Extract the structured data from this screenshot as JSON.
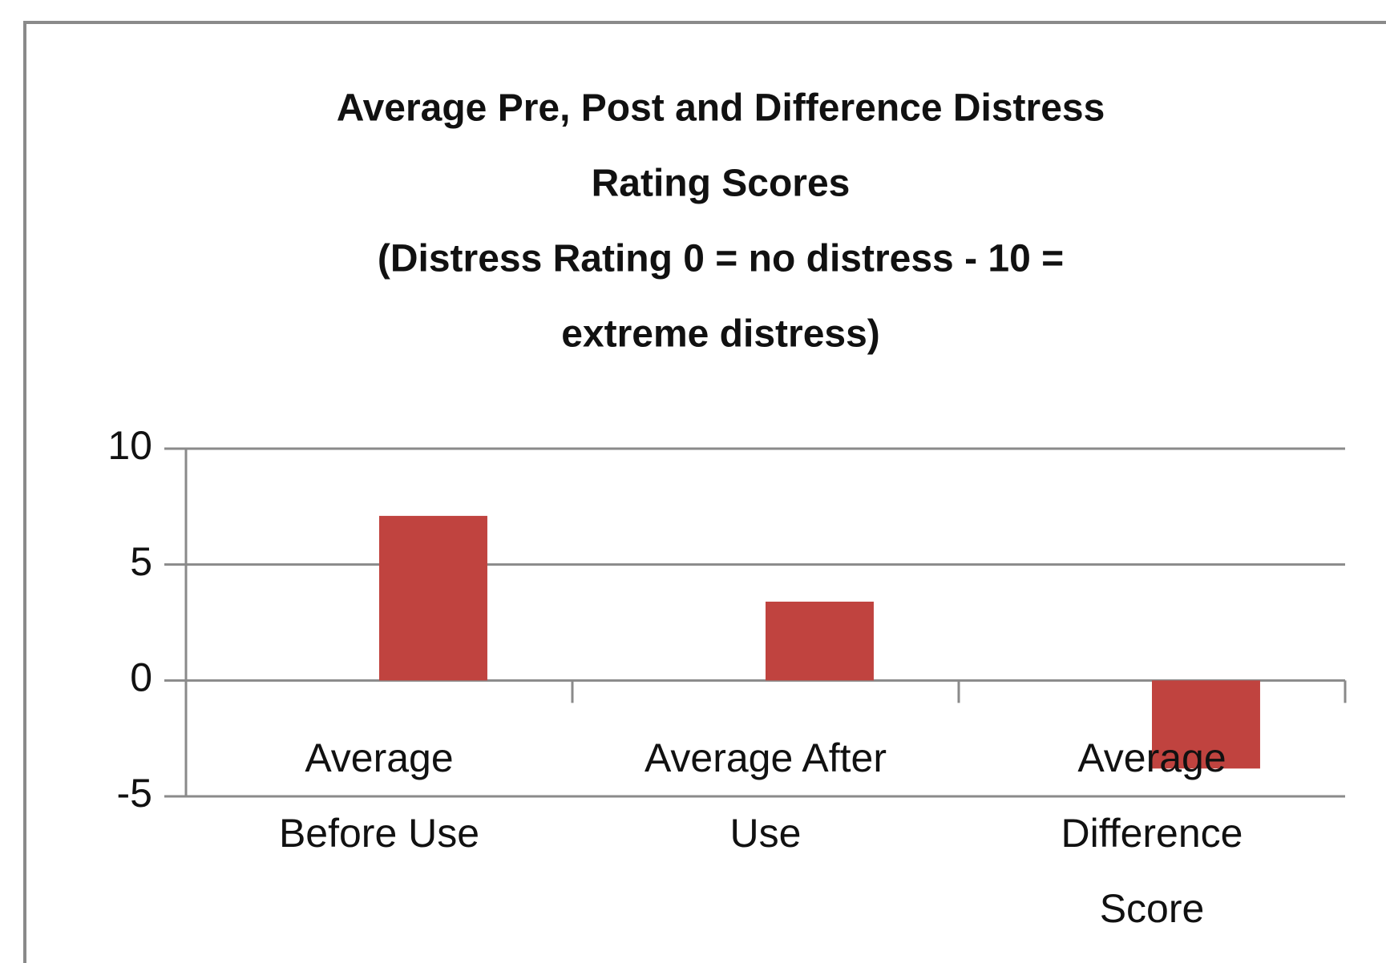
{
  "chart_data": {
    "type": "bar",
    "title": [
      "Average Pre, Post and Difference Distress",
      "Rating Scores",
      "(Distress Rating 0 = no distress - 10 =",
      "extreme distress)"
    ],
    "categories": [
      "Average Before Use",
      "Average After Use",
      "Average Difference Score"
    ],
    "values": [
      7.1,
      3.4,
      -3.8
    ],
    "color": "#c0433f",
    "ylim": [
      -5,
      10
    ],
    "yticks": [
      -5,
      0,
      5,
      10
    ],
    "grid": true
  }
}
